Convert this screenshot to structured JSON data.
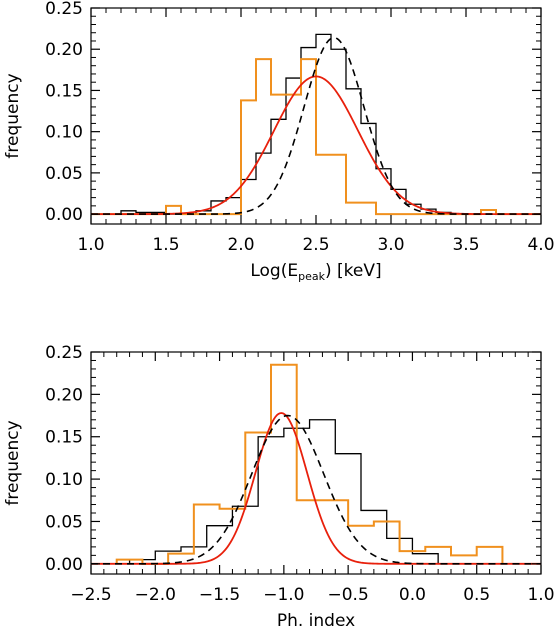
{
  "colors": {
    "black_hist": "#000000",
    "orange_hist": "#F0901E",
    "red_fit": "#E8200C",
    "dashed_fit": "#000000"
  },
  "chart_data": [
    {
      "type": "histogram",
      "xlabel_main": "Log(E",
      "xlabel_sub": "peak",
      "xlabel_tail": ") [keV]",
      "ylabel": "frequency",
      "xlim": [
        1.0,
        4.0
      ],
      "ylim": [
        -0.012,
        0.25
      ],
      "xticks": [
        1.0,
        1.5,
        2.0,
        2.5,
        3.0,
        3.5,
        4.0
      ],
      "xtick_labels": [
        "1.0",
        "1.5",
        "2.0",
        "2.5",
        "3.0",
        "3.5",
        "4.0"
      ],
      "yticks": [
        0.0,
        0.05,
        0.1,
        0.15,
        0.2,
        0.25
      ],
      "ytick_labels": [
        "0.00",
        "0.05",
        "0.10",
        "0.15",
        "0.20",
        "0.25"
      ],
      "series": [
        {
          "style": "black-step",
          "edges": [
            1.0,
            1.1,
            1.2,
            1.3,
            1.4,
            1.5,
            1.6,
            1.7,
            1.8,
            1.9,
            2.0,
            2.1,
            2.2,
            2.3,
            2.4,
            2.5,
            2.6,
            2.7,
            2.8,
            2.9,
            3.0,
            3.1,
            3.2,
            3.3,
            3.4,
            3.5,
            3.6,
            3.7,
            3.8,
            3.9,
            4.0
          ],
          "values": [
            0,
            0,
            0.004,
            0.002,
            0.002,
            0,
            0,
            0.004,
            0.016,
            0.02,
            0.042,
            0.074,
            0.115,
            0.165,
            0.202,
            0.218,
            0.2,
            0.152,
            0.11,
            0.055,
            0.03,
            0.012,
            0.006,
            0.002,
            0,
            0,
            0,
            0,
            0,
            0
          ]
        },
        {
          "style": "orange-step",
          "edges": [
            1.0,
            1.1,
            1.2,
            1.3,
            1.4,
            1.5,
            1.6,
            1.7,
            1.8,
            1.9,
            2.0,
            2.1,
            2.2,
            2.3,
            2.4,
            2.5,
            2.6,
            2.7,
            2.8,
            2.9,
            3.0,
            3.1,
            3.2,
            3.3,
            3.4,
            3.5,
            3.6,
            3.7,
            3.8,
            3.9,
            4.0
          ],
          "values": [
            0,
            0,
            0,
            0,
            0,
            0.01,
            0,
            0,
            0,
            0,
            0.138,
            0.188,
            0.145,
            0.145,
            0.188,
            0.072,
            0.072,
            0.014,
            0.014,
            0,
            0,
            0,
            0,
            0,
            0,
            0,
            0.005,
            0,
            0,
            0
          ]
        },
        {
          "style": "red-gaussian",
          "mean": 2.5,
          "sigma": 0.28,
          "peak": 0.167
        },
        {
          "style": "dashed-gaussian",
          "mean": 2.62,
          "sigma": 0.2,
          "peak": 0.214
        }
      ]
    },
    {
      "type": "histogram",
      "xlabel": "Ph. index",
      "ylabel": "frequency",
      "xlim": [
        -2.5,
        1.0
      ],
      "ylim": [
        -0.012,
        0.25
      ],
      "xticks": [
        -2.5,
        -2.0,
        -1.5,
        -1.0,
        -0.5,
        0.0,
        0.5,
        1.0
      ],
      "xtick_labels": [
        "−2.5",
        "−2.0",
        "−1.5",
        "−1.0",
        "−0.5",
        "0.0",
        "0.5",
        "1.0"
      ],
      "yticks": [
        0.0,
        0.05,
        0.1,
        0.15,
        0.2,
        0.25
      ],
      "ytick_labels": [
        "0.00",
        "0.05",
        "0.10",
        "0.15",
        "0.20",
        "0.25"
      ],
      "series": [
        {
          "style": "black-step",
          "edges": [
            -2.2,
            -2.0,
            -1.8,
            -1.6,
            -1.4,
            -1.2,
            -1.0,
            -0.8,
            -0.6,
            -0.4,
            -0.2,
            0.0,
            0.2
          ],
          "values": [
            0.005,
            0.015,
            0.02,
            0.045,
            0.068,
            0.15,
            0.16,
            0.17,
            0.13,
            0.063,
            0.03,
            0.012
          ]
        },
        {
          "style": "orange-step",
          "edges": [
            -2.3,
            -2.1,
            -1.9,
            -1.7,
            -1.5,
            -1.3,
            -1.1,
            -0.9,
            -0.7,
            -0.5,
            -0.3,
            -0.1,
            0.1,
            0.3,
            0.5,
            0.7
          ],
          "values": [
            0.005,
            0.0,
            0.012,
            0.07,
            0.065,
            0.155,
            0.235,
            0.075,
            0.075,
            0.045,
            0.05,
            0.015,
            0.02,
            0.01,
            0.02
          ]
        },
        {
          "style": "red-gaussian",
          "mean": -1.02,
          "sigma": 0.2,
          "peak": 0.178
        },
        {
          "style": "dashed-gaussian",
          "mean": -0.97,
          "sigma": 0.28,
          "peak": 0.175
        }
      ]
    }
  ]
}
